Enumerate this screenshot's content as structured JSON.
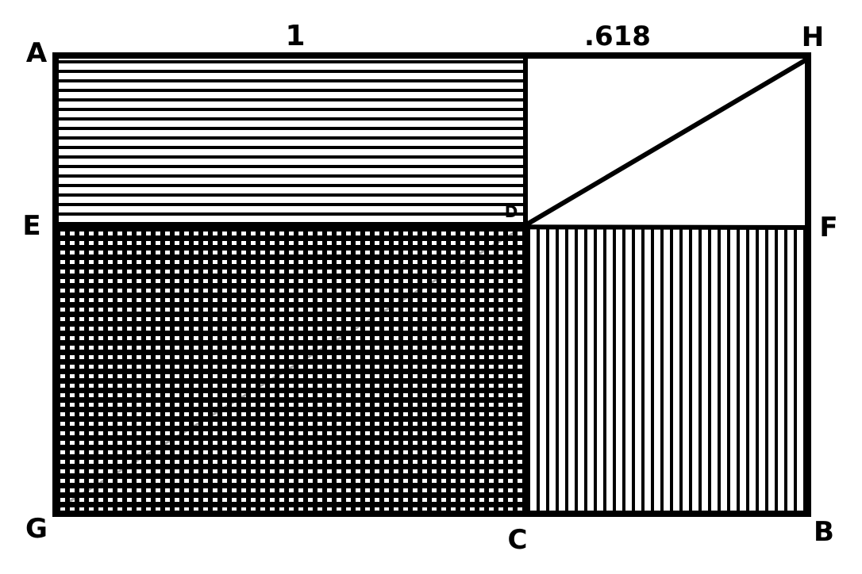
{
  "diagram": {
    "dimension_labels": {
      "top_left_segment": "1",
      "top_right_segment": ".618"
    },
    "vertex_labels": {
      "A": "A",
      "H": "H",
      "E": "E",
      "D": "D",
      "F": "F",
      "G": "G",
      "C": "C",
      "B": "B"
    },
    "colors": {
      "ink": "#000000",
      "paper": "#ffffff"
    }
  }
}
